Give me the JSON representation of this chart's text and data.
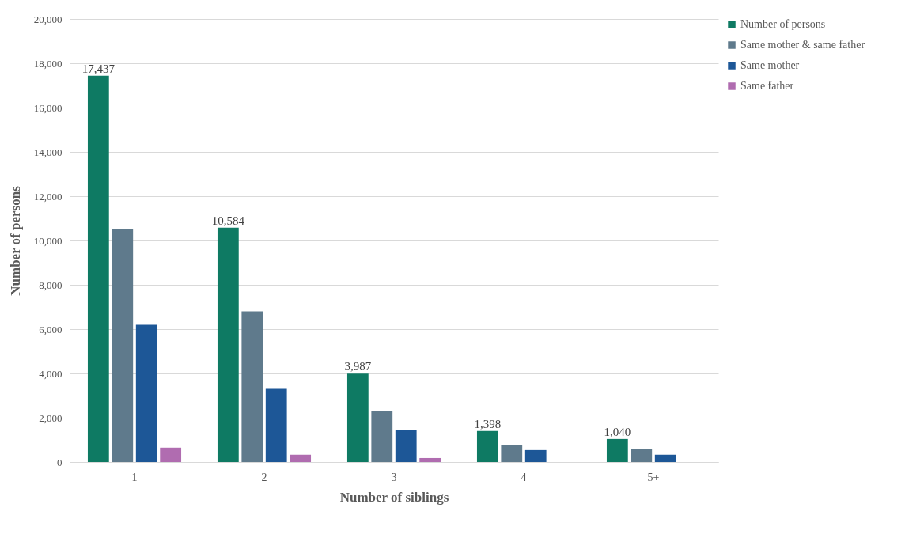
{
  "chart_data": {
    "type": "bar",
    "xlabel": "Number of siblings",
    "ylabel": "Number of persons",
    "categories": [
      "1",
      "2",
      "3",
      "4",
      "5+"
    ],
    "series": [
      {
        "name": "Number of persons",
        "color": "#0e7a63",
        "values": [
          17437,
          10584,
          3987,
          1398,
          1040
        ],
        "value_labels": [
          "17,437",
          "10,584",
          "3,987",
          "1,398",
          "1,040"
        ]
      },
      {
        "name": "Same mother & same father",
        "color": "#5f7a8c",
        "values": [
          10500,
          6800,
          2300,
          750,
          580
        ]
      },
      {
        "name": "Same mother",
        "color": "#1d5797",
        "values": [
          6200,
          3300,
          1450,
          540,
          330
        ]
      },
      {
        "name": "Same father",
        "color": "#b06cb0",
        "values": [
          650,
          330,
          180,
          null,
          null
        ]
      }
    ],
    "ylim": [
      0,
      20000
    ],
    "yticks": [
      0,
      {
        "value": 2000,
        "label": "2,000"
      },
      {
        "value": 4000,
        "label": "4,000"
      },
      {
        "value": 6000,
        "label": "6,000"
      },
      {
        "value": 8000,
        "label": "8,000"
      },
      {
        "value": 10000,
        "label": "10,000"
      },
      {
        "value": 12000,
        "label": "12,000"
      },
      {
        "value": 14000,
        "label": "14,000"
      },
      {
        "value": 16000,
        "label": "16,000"
      },
      {
        "value": 18000,
        "label": "18,000"
      },
      {
        "value": 20000,
        "label": "20,000"
      }
    ],
    "grid": "y",
    "legend": "right"
  }
}
